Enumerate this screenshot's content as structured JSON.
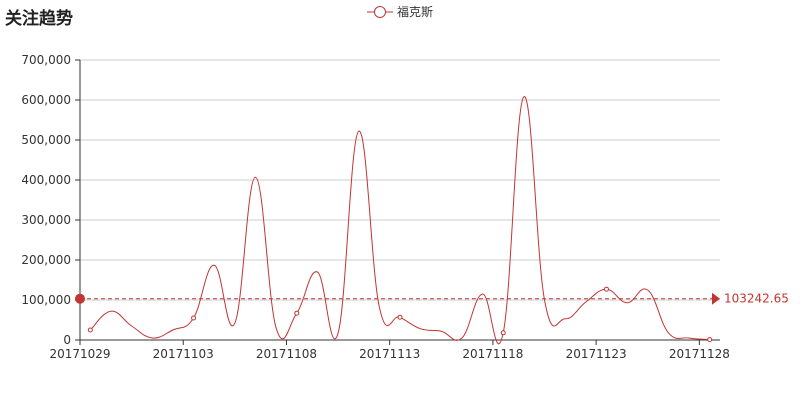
{
  "chart_data": {
    "type": "line",
    "title": "关注趋势",
    "legend": [
      "福克斯"
    ],
    "legend_position": "top-center",
    "series": [
      {
        "name": "福克斯",
        "color": "#c23531",
        "smooth": true,
        "values": [
          25000,
          72000,
          35000,
          5000,
          25000,
          55000,
          187000,
          42000,
          407000,
          30000,
          67000,
          170000,
          17000,
          522000,
          82000,
          57000,
          28000,
          22000,
          5000,
          115000,
          18000,
          608000,
          100000,
          53000,
          95000,
          127000,
          93000,
          125000,
          18000,
          5000,
          1000
        ]
      }
    ],
    "categories": [
      "20171029",
      "20171030",
      "20171031",
      "20171101",
      "20171102",
      "20171103",
      "20171104",
      "20171105",
      "20171106",
      "20171107",
      "20171108",
      "20171109",
      "20171110",
      "20171111",
      "20171112",
      "20171113",
      "20171114",
      "20171115",
      "20171116",
      "20171117",
      "20171118",
      "20171119",
      "20171120",
      "20171121",
      "20171122",
      "20171123",
      "20171124",
      "20171125",
      "20171126",
      "20171127",
      "20171128"
    ],
    "x_tick_labels": [
      "20171029",
      "20171103",
      "20171108",
      "20171113",
      "20171118",
      "20171123",
      "20171128"
    ],
    "y_tick_labels": [
      "0",
      "100,000",
      "200,000",
      "300,000",
      "400,000",
      "500,000",
      "600,000",
      "700,000"
    ],
    "ylim": [
      0,
      700000
    ],
    "grid": true,
    "mark_line": {
      "type": "average",
      "value": 103242.65,
      "label": "103242.65"
    }
  }
}
